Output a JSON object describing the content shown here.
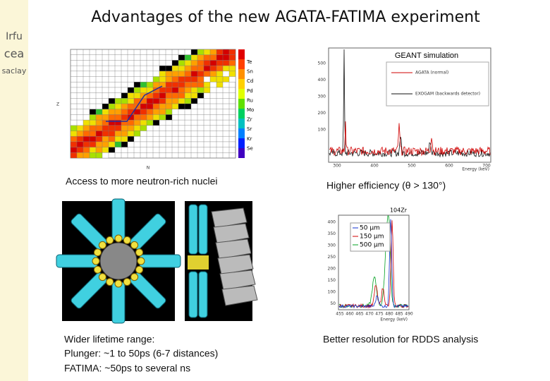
{
  "logo": {
    "lines": [
      "Irfu",
      "cea",
      "saclay"
    ]
  },
  "title": "Advantages of the new AGATA-FATIMA experiment",
  "nuclide_chart": {
    "caption": "Access to more neutron-rich nuclei",
    "elements": [
      "Te",
      "Sn",
      "Cd",
      "Pd",
      "Ru",
      "Mo",
      "Zr",
      "Sr",
      "Kr",
      "Se"
    ],
    "xlabel": "N",
    "ylabel": "Z"
  },
  "geant": {
    "title": "GEANT simulation",
    "caption": "Higher efficiency (θ > 130°)",
    "legend": [
      "AGATA (normal)",
      "EXOGAM (backwards detector)"
    ],
    "yticks": [
      "500",
      "400",
      "300",
      "200",
      "100"
    ],
    "xticks": [
      "300",
      "400",
      "500",
      "600",
      "700"
    ],
    "xlabel": "Energy (keV)"
  },
  "lifetime": {
    "lines": [
      "Wider lifetime range:",
      "Plunger:  ~1 to 50ps (6-7 distances)",
      "FATIMA:  ~50ps to several ns"
    ]
  },
  "zr": {
    "title": "104Zr",
    "caption": "Better resolution for RDDS analysis",
    "legend": [
      "50 µm",
      "150 µm",
      "500 µm"
    ],
    "yticks": [
      "400",
      "350",
      "300",
      "250",
      "200",
      "150",
      "100",
      "50"
    ],
    "xticks": [
      "455",
      "460",
      "465",
      "470",
      "475",
      "480",
      "485",
      "490"
    ],
    "xlabel": "Energy (keV)"
  }
}
